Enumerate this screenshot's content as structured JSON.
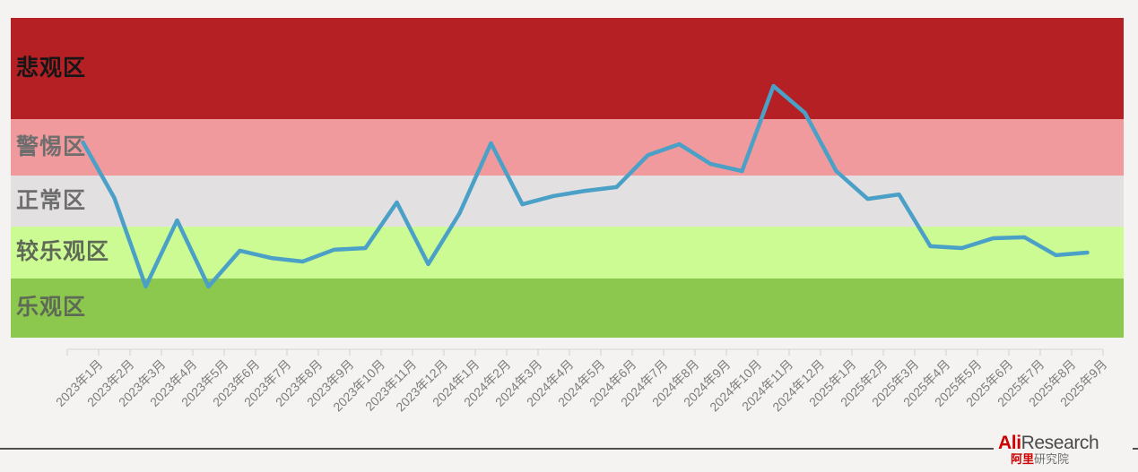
{
  "page": {
    "background": "#f4f3f2"
  },
  "chart_data": {
    "type": "line",
    "title": "",
    "categories": [
      "2023年1月",
      "2023年2月",
      "2023年3月",
      "2023年4月",
      "2023年5月",
      "2023年6月",
      "2023年7月",
      "2023年8月",
      "2023年9月",
      "2023年10月",
      "2023年11月",
      "2023年12月",
      "2024年1月",
      "2024年2月",
      "2024年3月",
      "2024年4月",
      "2024年5月",
      "2024年6月",
      "2024年7月",
      "2024年8月",
      "2024年9月",
      "2024年10月",
      "2024年11月",
      "2024年12月",
      "2025年1月",
      "2025年2月",
      "2025年3月",
      "2025年4月",
      "2025年5月",
      "2025年6月",
      "2025年7月",
      "2025年8月",
      "2025年9月"
    ],
    "series": [
      {
        "color": "#4aa0c6",
        "values": [
          61.1,
          43.7,
          16.0,
          36.7,
          16.0,
          27.2,
          24.9,
          23.8,
          27.5,
          28.0,
          42.3,
          23.0,
          38.9,
          60.8,
          41.7,
          44.3,
          45.9,
          47.1,
          57.1,
          60.5,
          54.3,
          52.1,
          78.7,
          70.3,
          52.1,
          43.4,
          44.8,
          28.6,
          28.0,
          31.1,
          31.4,
          25.8,
          26.6
        ]
      }
    ],
    "ylim": [
      0,
      100
    ],
    "value_scale": "0-100 normalized estimate (chart shows no numeric y-axis)",
    "grid": false,
    "legend": "none",
    "x_axis": {
      "position": "bottom",
      "tick_label_rotation": 45
    },
    "zones": [
      {
        "label": "悲观区",
        "min": 68.3,
        "max": 100,
        "color": "#b42023",
        "label_color": "#161616"
      },
      {
        "label": "警惕区",
        "min": 50.7,
        "max": 68.3,
        "color": "#f09a9d",
        "label_color": "#6e6e6e"
      },
      {
        "label": "正常区",
        "min": 34.7,
        "max": 50.7,
        "color": "#e2e0e1",
        "label_color": "#6e6e6e"
      },
      {
        "label": "较乐观区",
        "min": 18.5,
        "max": 34.7,
        "color": "#ccfb94",
        "label_color": "#5e6a56"
      },
      {
        "label": "乐观区",
        "min": 0,
        "max": 18.5,
        "color": "#8cc84e",
        "label_color": "#5e6a56"
      }
    ],
    "axis_color": "#d6d6d6",
    "tick_color": "#cfcfcf"
  },
  "footer": {
    "brand": {
      "en_red": "Ali",
      "en_gray": "Research",
      "cn_red": "阿里",
      "cn_gray": "研究院",
      "red_color": "#cc0000",
      "gray_color": "#4a4a4a",
      "cn_gray_color": "#6f6f6f"
    },
    "rule_color": "#4f4f4f"
  }
}
